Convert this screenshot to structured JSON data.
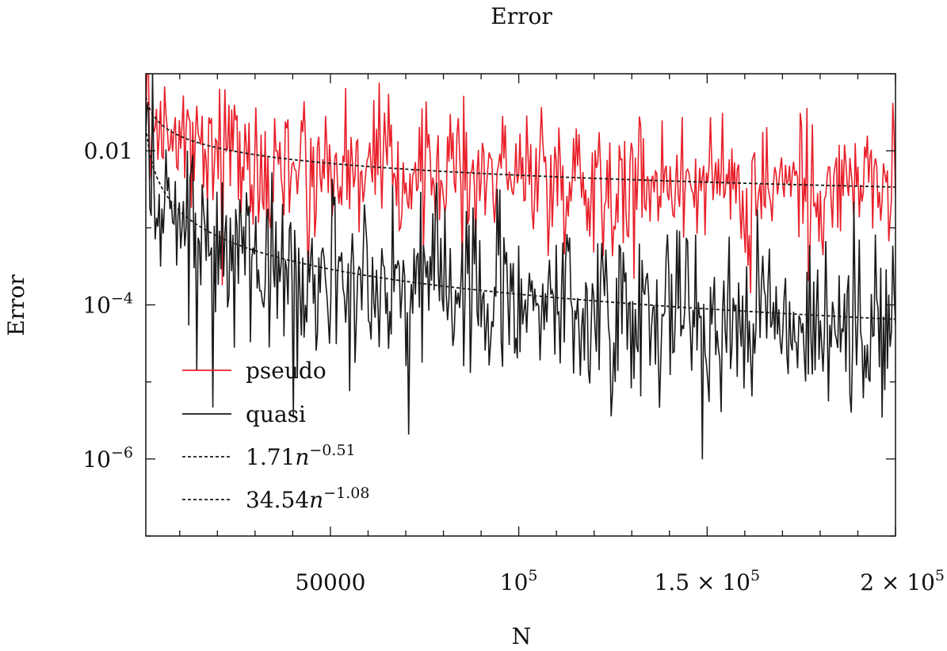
{
  "chart_data": {
    "type": "line",
    "title": "Error",
    "xlabel": "N",
    "ylabel": "Error",
    "x_scale": "linear",
    "y_scale": "log",
    "xlim": [
      1000,
      200000
    ],
    "ylim": [
      1e-07,
      0.1
    ],
    "x_ticks": [
      {
        "value": 50000,
        "label": "50000",
        "exp": ""
      },
      {
        "value": 100000,
        "label": "10",
        "exp": "5"
      },
      {
        "value": 150000,
        "label": "1.5 × 10",
        "exp": "5"
      },
      {
        "value": 200000,
        "label": "2 × 10",
        "exp": "5"
      }
    ],
    "y_ticks": [
      {
        "value": 0.01,
        "label": "0.01",
        "exp": ""
      },
      {
        "value": 0.0001,
        "label": "10",
        "exp": "−4"
      },
      {
        "value": 1e-06,
        "label": "10",
        "exp": "−6"
      }
    ],
    "grid": false,
    "legend_position": "bottom-left",
    "series": [
      {
        "name": "pseudo",
        "color": "#e8202a",
        "style": "solid",
        "kind": "noisy",
        "coef": 1.71,
        "power": -0.51,
        "spread": 1.5,
        "x_start": 1000,
        "x_end": 200000,
        "count": 560
      },
      {
        "name": "quasi",
        "color": "#1a1a1a",
        "style": "solid",
        "kind": "noisy",
        "coef": 34.54,
        "power": -1.08,
        "spread": 2.0,
        "x_start": 1000,
        "x_end": 200000,
        "count": 560
      },
      {
        "name": "1.71n",
        "exp": "−0.51",
        "color": "#1a1a1a",
        "style": "dotted",
        "kind": "fit",
        "coef": 1.71,
        "power": -0.51,
        "x_start": 1000,
        "x_end": 200000
      },
      {
        "name": "34.54n",
        "exp": "−1.08",
        "color": "#1a1a1a",
        "style": "dotted",
        "kind": "fit",
        "coef": 34.54,
        "power": -1.08,
        "x_start": 1000,
        "x_end": 200000
      }
    ]
  }
}
